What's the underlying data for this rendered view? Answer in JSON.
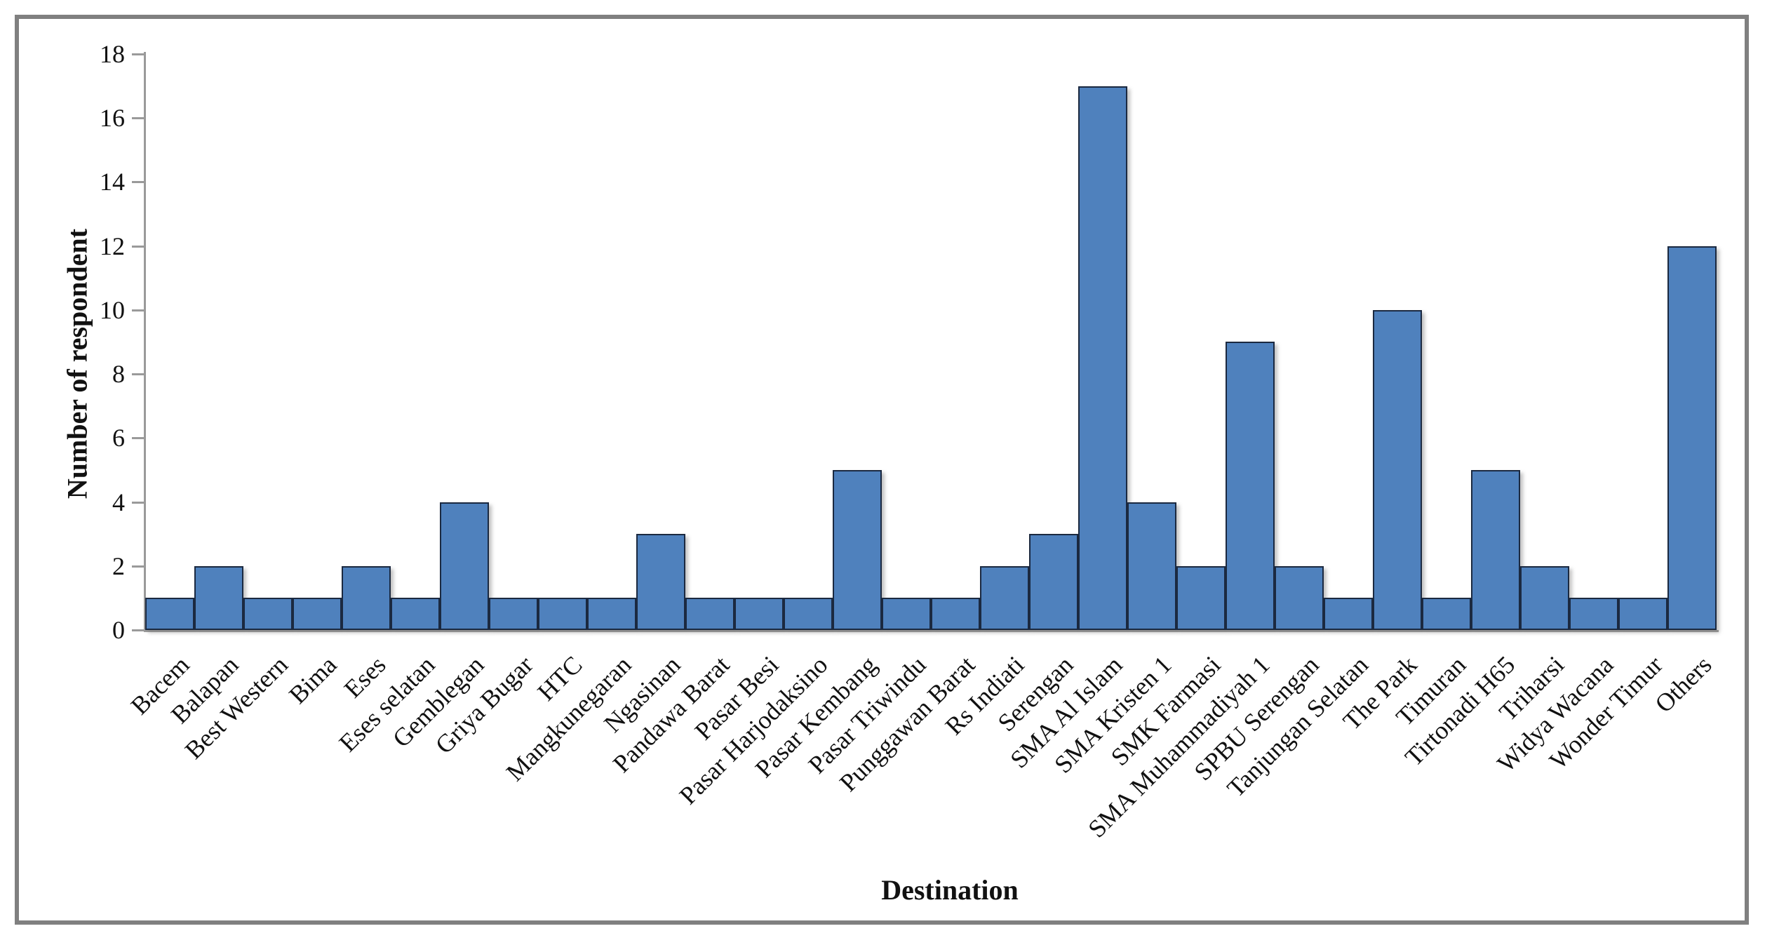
{
  "chart_data": {
    "type": "bar",
    "title": "",
    "xlabel": "Destination",
    "ylabel": "Number of respondent",
    "categories": [
      "Bacem",
      "Balapan",
      "Best Western",
      "Bima",
      "Eses",
      "Eses selatan",
      "Gemblegan",
      "Griya Bugar",
      "HTC",
      "Mangkunegaran",
      "Ngasinan",
      "Pandawa Barat",
      "Pasar Besi",
      "Pasar Harjodaksino",
      "Pasar Kembang",
      "Pasar Triwindu",
      "Punggawan Barat",
      "Rs Indiati",
      "Serengan",
      "SMA Al Islam",
      "SMA Kristen 1",
      "SMK Farmasi",
      "SMA Muhammadiyah 1",
      "SPBU Serengan",
      "Tanjungan Selatan",
      "The Park",
      "Timuran",
      "Tirtonadi H65",
      "Triharsi",
      "Widya Wacana",
      "Wonder Timur",
      "Others"
    ],
    "values": [
      1,
      2,
      1,
      1,
      2,
      1,
      4,
      1,
      1,
      1,
      3,
      1,
      1,
      1,
      5,
      1,
      1,
      2,
      3,
      17,
      4,
      2,
      9,
      2,
      1,
      10,
      1,
      5,
      2,
      1,
      1,
      12
    ],
    "ylim": [
      0,
      18
    ],
    "ytick_step": 2,
    "yticks": [
      0,
      2,
      4,
      6,
      8,
      10,
      12,
      14,
      16,
      18
    ],
    "grid": false,
    "legend": "none",
    "bar_fill_color": "#4F81BD",
    "bar_border_color": "#1b2940",
    "axis_color": "#9a9a9a",
    "frame_border_color": "#808080",
    "text_color": "#111111"
  }
}
